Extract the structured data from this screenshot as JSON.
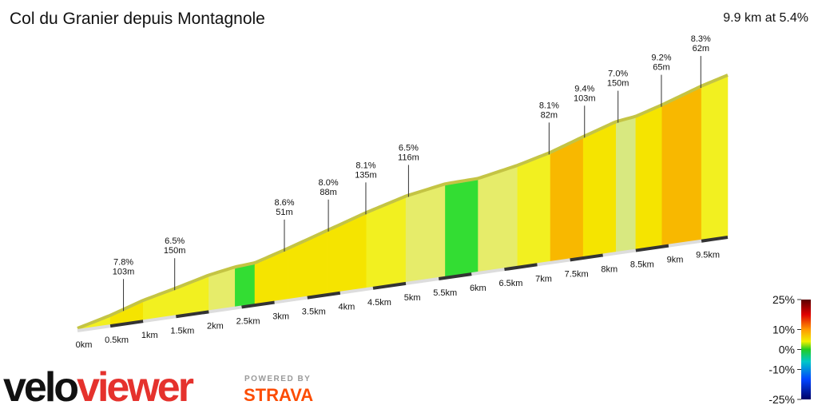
{
  "chart_data": {
    "type": "profile",
    "title": "Col du Granier depuis Montagnole",
    "subtitle": "9.9 km at 5.4%",
    "xlim": [
      0,
      9.9
    ],
    "xticks": [
      {
        "value": 0,
        "label": "0km"
      },
      {
        "value": 0.5,
        "label": "0.5km"
      },
      {
        "value": 1,
        "label": "1km"
      },
      {
        "value": 1.5,
        "label": "1.5km"
      },
      {
        "value": 2,
        "label": "2km"
      },
      {
        "value": 2.5,
        "label": "2.5km"
      },
      {
        "value": 3,
        "label": "3km"
      },
      {
        "value": 3.5,
        "label": "3.5km"
      },
      {
        "value": 4,
        "label": "4km"
      },
      {
        "value": 4.5,
        "label": "4.5km"
      },
      {
        "value": 5,
        "label": "5km"
      },
      {
        "value": 5.5,
        "label": "5.5km"
      },
      {
        "value": 6,
        "label": "6km"
      },
      {
        "value": 6.5,
        "label": "6.5km"
      },
      {
        "value": 7,
        "label": "7km"
      },
      {
        "value": 7.5,
        "label": "7.5km"
      },
      {
        "value": 8,
        "label": "8km"
      },
      {
        "value": 8.5,
        "label": "8.5km"
      },
      {
        "value": 9,
        "label": "9km"
      },
      {
        "value": 9.5,
        "label": "9.5km"
      }
    ],
    "segments": {
      "x": [
        0,
        0.5,
        1,
        1.5,
        2,
        2.4,
        2.7,
        3.2,
        3.8,
        4.4,
        5,
        5.6,
        6.1,
        6.7,
        7.2,
        7.7,
        8.2,
        8.5,
        8.9,
        9.5,
        9.9
      ],
      "gradient": [
        6,
        7.5,
        5.5,
        6,
        4,
        1.5,
        7,
        7.5,
        7.5,
        6.5,
        4,
        0.5,
        4.5,
        6,
        8,
        7.5,
        3,
        7,
        8,
        6.5
      ]
    },
    "annotations": [
      {
        "x": 0.7,
        "gradient": 7.8,
        "gradient_label": "7.8%",
        "length": 103,
        "length_label": "103m"
      },
      {
        "x": 1.48,
        "gradient": 6.5,
        "gradient_label": "6.5%",
        "length": 150,
        "length_label": "150m"
      },
      {
        "x": 3.15,
        "gradient": 8.6,
        "gradient_label": "8.6%",
        "length": 51,
        "length_label": "51m"
      },
      {
        "x": 3.82,
        "gradient": 8.0,
        "gradient_label": "8.0%",
        "length": 88,
        "length_label": "88m"
      },
      {
        "x": 4.39,
        "gradient": 8.1,
        "gradient_label": "8.1%",
        "length": 135,
        "length_label": "135m"
      },
      {
        "x": 5.04,
        "gradient": 6.5,
        "gradient_label": "6.5%",
        "length": 116,
        "length_label": "116m"
      },
      {
        "x": 7.18,
        "gradient": 8.1,
        "gradient_label": "8.1%",
        "length": 82,
        "length_label": "82m"
      },
      {
        "x": 7.72,
        "gradient": 9.4,
        "gradient_label": "9.4%",
        "length": 103,
        "length_label": "103m"
      },
      {
        "x": 8.23,
        "gradient": 7.0,
        "gradient_label": "7.0%",
        "length": 150,
        "length_label": "150m"
      },
      {
        "x": 8.89,
        "gradient": 9.2,
        "gradient_label": "9.2%",
        "length": 65,
        "length_label": "65m"
      },
      {
        "x": 9.49,
        "gradient": 8.3,
        "gradient_label": "8.3%",
        "length": 62,
        "length_label": "62m"
      }
    ],
    "colorscale": {
      "lim": [
        -25,
        25
      ],
      "ticks": [
        {
          "value": 25,
          "label": "25%"
        },
        {
          "value": 10,
          "label": "10%"
        },
        {
          "value": 0,
          "label": "0%"
        },
        {
          "value": -10,
          "label": "-10%"
        },
        {
          "value": -25,
          "label": "-25%"
        }
      ]
    },
    "logo": {
      "velo": "velo",
      "viewer": "viewer",
      "powered": "POWERED BY",
      "strava": "STRAVA"
    }
  }
}
